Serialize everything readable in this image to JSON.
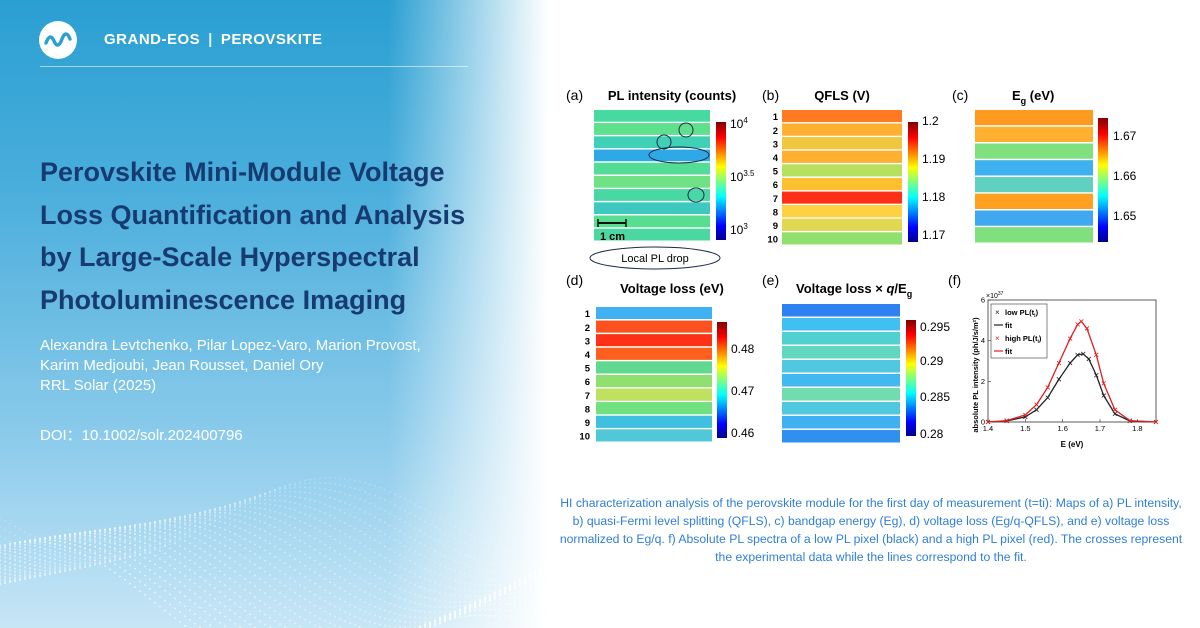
{
  "header": {
    "brand": "GRAND-EOS",
    "separator": "|",
    "topic": "PEROVSKITE"
  },
  "paper": {
    "title_lines": [
      "Perovskite Mini-Module Voltage",
      "Loss Quantification and Analysis",
      "by Large-Scale Hyperspectral",
      "Photoluminescence Imaging"
    ],
    "author_lines": [
      "Alexandra Levtchenko, Pilar Lopez-Varo, Marion Provost,",
      "Karim Medjoubi, Jean Rousset, Daniel Ory",
      "RRL Solar (2025)"
    ],
    "doi": "DOI：10.1002/solr.202400796"
  },
  "figure": {
    "panels": {
      "a": {
        "label": "(a)",
        "title": "PL intensity (counts)",
        "ticks": [
          "10",
          "10",
          "10"
        ],
        "tick_exps": [
          "4",
          "3.5",
          "3"
        ],
        "scale_bar": "1 cm",
        "annotation": "Local PL drop"
      },
      "b": {
        "label": "(b)",
        "title": "QFLS (V)",
        "ticks": [
          "1.2",
          "1.19",
          "1.18",
          "1.17"
        ]
      },
      "c": {
        "label": "(c)",
        "title_main": "E",
        "title_sub": "g",
        "title_unit": " (eV)",
        "ticks": [
          "1.67",
          "1.66",
          "1.65"
        ]
      },
      "d": {
        "label": "(d)",
        "title": "Voltage loss (eV)",
        "ticks": [
          "0.48",
          "0.47",
          "0.46"
        ]
      },
      "e": {
        "label": "(e)",
        "title_main": "Voltage loss × ",
        "title_q": "q",
        "title_slash": "/E",
        "title_sub": "g",
        "ticks": [
          "0.295",
          "0.29",
          "0.285",
          "0.28"
        ]
      },
      "f": {
        "label": "(f)",
        "y_multiplier": "×10",
        "y_multiplier_exp": "37",
        "ylabel": "absolute PL intensity (ph/J/s/m²)",
        "xlabel": "E (eV)",
        "xticks": [
          "1.4",
          "1.5",
          "1.6",
          "1.7",
          "1.8"
        ],
        "yticks": [
          "0",
          "2",
          "4",
          "6"
        ],
        "legend": [
          "low PL(t",
          "fit",
          "high PL(t",
          "fit"
        ],
        "legend_sub": "i"
      }
    },
    "row_numbers": [
      "1",
      "2",
      "3",
      "4",
      "5",
      "6",
      "7",
      "8",
      "9",
      "10"
    ]
  },
  "chart_data": {
    "type": "line",
    "xlabel": "E (eV)",
    "ylabel": "absolute PL intensity (ph/J/s/m²)",
    "xlim": [
      1.4,
      1.85
    ],
    "ylim": [
      0,
      6
    ],
    "y_scale_factor": "1e37",
    "series": [
      {
        "name": "low PL(ti)",
        "color": "#222222",
        "x": [
          1.4,
          1.45,
          1.5,
          1.53,
          1.56,
          1.59,
          1.62,
          1.64,
          1.655,
          1.67,
          1.69,
          1.71,
          1.74,
          1.78,
          1.85
        ],
        "values": [
          0.0,
          0.05,
          0.25,
          0.6,
          1.2,
          2.1,
          2.9,
          3.3,
          3.35,
          3.1,
          2.3,
          1.3,
          0.4,
          0.05,
          0.0
        ]
      },
      {
        "name": "high PL(ti)",
        "color": "#e02020",
        "x": [
          1.4,
          1.45,
          1.5,
          1.53,
          1.56,
          1.59,
          1.62,
          1.64,
          1.65,
          1.665,
          1.69,
          1.71,
          1.74,
          1.78,
          1.85
        ],
        "values": [
          0.0,
          0.07,
          0.35,
          0.85,
          1.7,
          2.9,
          4.1,
          4.8,
          4.95,
          4.6,
          3.3,
          1.9,
          0.6,
          0.07,
          0.0
        ]
      }
    ]
  },
  "caption": "HI characterization analysis of the perovskite module for the first day of measurement (t=ti): Maps of a) PL intensity, b) quasi-Fermi level splitting (QFLS), c) bandgap energy (Eg), d) voltage loss (Eg/q-QFLS), and e) voltage loss normalized to Eg/q. f) Absolute PL spectra of a low PL pixel (black) and a high PL pixel (red). The crosses represent the experimental data while the lines correspond to the fit."
}
